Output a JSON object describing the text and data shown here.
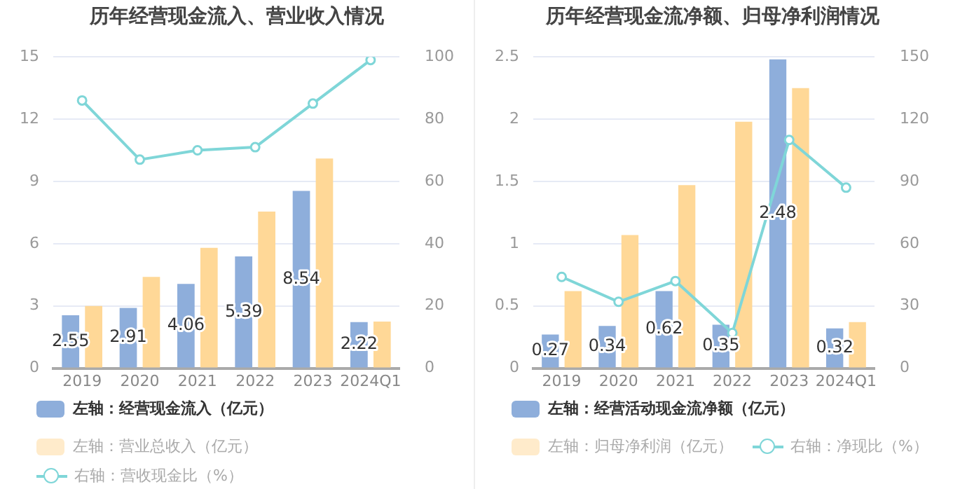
{
  "chart_data": [
    {
      "type": "bar",
      "title": "历年经营现金流入、营业收入情况",
      "categories": [
        "2019",
        "2020",
        "2021",
        "2022",
        "2023",
        "2024Q1"
      ],
      "ylim": [
        0,
        15
      ],
      "yticks": [
        0,
        3,
        6,
        9,
        12,
        15
      ],
      "y2lim": [
        0,
        100
      ],
      "y2ticks": [
        0,
        20,
        40,
        60,
        80,
        100
      ],
      "grid": "y",
      "legend": "bottom",
      "series": [
        {
          "name": "左轴：经营现金流入（亿元）",
          "color": "#8eaedb",
          "values": [
            2.55,
            2.91,
            4.06,
            5.39,
            8.54,
            2.22
          ],
          "value_labels": [
            "2.55",
            "2.91",
            "4.06",
            "5.39",
            "8.54",
            "2.22"
          ]
        },
        {
          "name": "左轴：营业总收入（亿元）",
          "color": "#ffd897",
          "values": [
            3.0,
            4.4,
            5.8,
            7.55,
            10.1,
            2.25
          ]
        },
        {
          "name": "右轴：营收现金比（%）",
          "type": "line",
          "axis": "y2",
          "color": "#7fd6d8",
          "marker": "circle",
          "values": [
            86,
            67,
            70,
            71,
            85,
            99
          ]
        }
      ]
    },
    {
      "type": "bar",
      "title": "历年经营现金流净额、归母净利润情况",
      "categories": [
        "2019",
        "2020",
        "2021",
        "2022",
        "2023",
        "2024Q1"
      ],
      "ylim": [
        0,
        2.5
      ],
      "yticks": [
        0,
        0.5,
        1,
        1.5,
        2,
        2.5
      ],
      "y2lim": [
        0,
        150
      ],
      "y2ticks": [
        0,
        30,
        60,
        90,
        120,
        150
      ],
      "grid": "y",
      "legend": "bottom",
      "series": [
        {
          "name": "左轴：经营活动现金流净额（亿元）",
          "color": "#8eaedb",
          "values": [
            0.27,
            0.34,
            0.62,
            0.35,
            2.48,
            0.32
          ],
          "value_labels": [
            "0.27",
            "0.34",
            "0.62",
            "0.35",
            "2.48",
            "0.32"
          ]
        },
        {
          "name": "左轴：归母净利润（亿元）",
          "color": "#ffd897",
          "values": [
            0.62,
            1.07,
            1.47,
            1.98,
            2.25,
            0.37
          ]
        },
        {
          "name": "右轴：净现比（%）",
          "type": "line",
          "axis": "y2",
          "color": "#7fd6d8",
          "marker": "circle",
          "values": [
            44,
            32,
            42,
            17,
            110,
            87
          ]
        }
      ]
    }
  ]
}
